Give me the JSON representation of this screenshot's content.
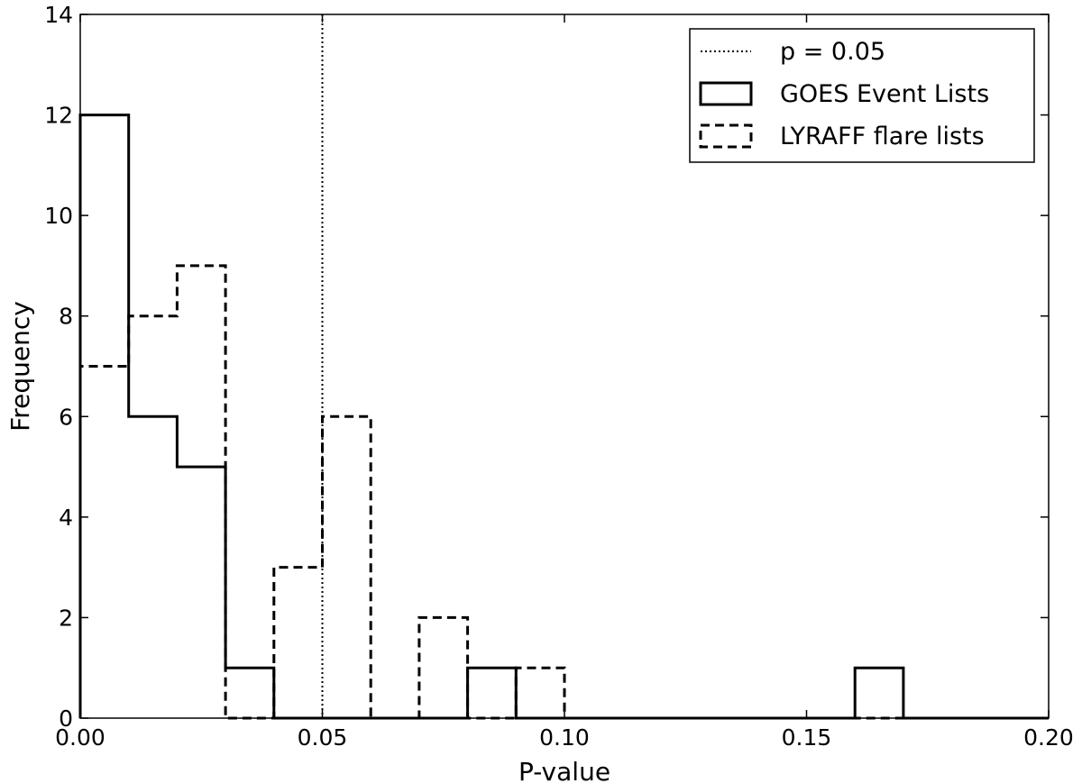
{
  "chart_data": {
    "type": "histogram",
    "title": "",
    "xlabel": "P-value",
    "ylabel": "Frequency",
    "xlim": [
      0.0,
      0.2
    ],
    "ylim": [
      0,
      14
    ],
    "xticks": [
      "0.00",
      "0.05",
      "0.10",
      "0.15",
      "0.20"
    ],
    "yticks": [
      "0",
      "2",
      "4",
      "6",
      "8",
      "10",
      "12",
      "14"
    ],
    "grid": false,
    "legend_position": "top-right",
    "bin_edges": [
      0.0,
      0.01,
      0.02,
      0.03,
      0.04,
      0.05,
      0.06,
      0.07,
      0.08,
      0.09,
      0.1,
      0.11,
      0.12,
      0.13,
      0.14,
      0.15,
      0.16,
      0.17,
      0.18,
      0.19,
      0.2
    ],
    "series": [
      {
        "name": "GOES Event Lists",
        "style": "solid",
        "color": "#000000",
        "counts": [
          12,
          6,
          5,
          1,
          0,
          0,
          0,
          0,
          1,
          0,
          0,
          0,
          0,
          0,
          0,
          0,
          1,
          0,
          0,
          0
        ]
      },
      {
        "name": "LYRAFF flare lists",
        "style": "dashed",
        "color": "#000000",
        "counts": [
          7,
          8,
          9,
          0,
          3,
          6,
          0,
          2,
          0,
          1,
          0,
          0,
          0,
          0,
          0,
          0,
          0,
          0,
          0,
          0
        ]
      }
    ],
    "reference_lines": [
      {
        "name": "p = 0.05",
        "x": 0.05,
        "style": "dotted",
        "color": "#000000"
      }
    ]
  }
}
